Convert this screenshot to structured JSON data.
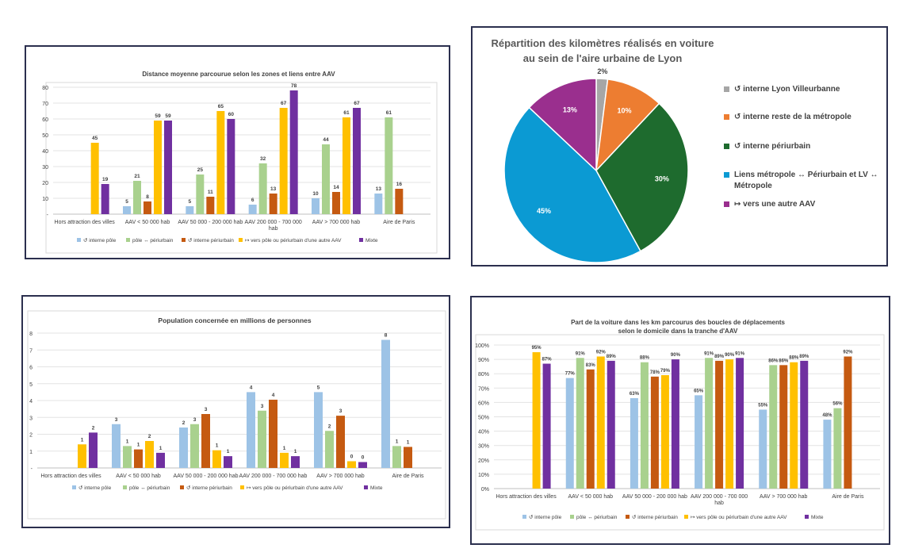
{
  "colors": {
    "interne_pole": "#9dc3e6",
    "pole_periurbain": "#a9d18e",
    "interne_periurbain": "#c55a11",
    "vers_autre_aav": "#ffc000",
    "mixte": "#7030a0",
    "pie_lyon_vill": "#a6a6a6",
    "pie_reste_metropole": "#ed7d31",
    "pie_periurbain": "#1e6b2e",
    "pie_liens": "#0b9ad3",
    "pie_autre_aav": "#9a2f8e",
    "border": "#2b2f4e"
  },
  "legend_bar": [
    {
      "key": "interne_pole",
      "label": "↺ interne pôle"
    },
    {
      "key": "pole_periurbain",
      "label": "pôle ↔ périurbain"
    },
    {
      "key": "interne_periurbain",
      "label": "↺ interne périurbain"
    },
    {
      "key": "vers_autre_aav",
      "label": "↦ vers pôle ou périurbain d'une autre AAV"
    },
    {
      "key": "mixte",
      "label": "Mixte"
    }
  ],
  "chart_data": [
    {
      "id": "distance",
      "type": "bar",
      "title": "Distance moyenne parcourue selon les zones et liens entre AAV",
      "ylim": [
        0,
        80
      ],
      "yticks": [
        "-",
        "10",
        "20",
        "30",
        "40",
        "50",
        "60",
        "70",
        "80"
      ],
      "categories": [
        [
          "Hors attraction des villes"
        ],
        [
          "AAV < 50 000 hab"
        ],
        [
          "AAV 50 000 - 200 000 hab"
        ],
        [
          "AAV 200 000 - 700 000",
          "hab"
        ],
        [
          "AAV > 700 000 hab"
        ],
        [
          "Aire de Paris"
        ]
      ],
      "series": [
        {
          "key": "interne_pole",
          "values": [
            null,
            5,
            5,
            6,
            10,
            13
          ],
          "labels": [
            "",
            "5",
            "5",
            "6",
            "10",
            "13"
          ]
        },
        {
          "key": "pole_periurbain",
          "values": [
            null,
            21,
            25,
            32,
            44,
            61
          ],
          "labels": [
            "",
            "21",
            "25",
            "32",
            "44",
            "61"
          ]
        },
        {
          "key": "interne_periurbain",
          "values": [
            null,
            8,
            11,
            13,
            14,
            16
          ],
          "labels": [
            "",
            "8",
            "11",
            "13",
            "14",
            "16"
          ]
        },
        {
          "key": "vers_autre_aav",
          "values": [
            45,
            59,
            65,
            67,
            61,
            null
          ],
          "labels": [
            "45",
            "59",
            "65",
            "67",
            "61",
            ""
          ]
        },
        {
          "key": "mixte",
          "values": [
            19,
            59,
            60,
            78,
            67,
            null
          ],
          "labels": [
            "19",
            "59",
            "60",
            "78",
            "67",
            ""
          ]
        }
      ]
    },
    {
      "id": "population",
      "type": "bar",
      "title": "Population concernée en millions de personnes",
      "ylim": [
        0,
        8
      ],
      "yticks": [
        "-",
        "1",
        "2",
        "3",
        "4",
        "5",
        "6",
        "7",
        "8"
      ],
      "categories": [
        [
          "Hors attraction des villes"
        ],
        [
          "AAV < 50 000 hab"
        ],
        [
          "AAV 50 000 - 200 000 hab"
        ],
        [
          "AAV 200 000 - 700 000 hab"
        ],
        [
          "AAV > 700 000 hab"
        ],
        [
          "Aire de Paris"
        ]
      ],
      "series": [
        {
          "key": "interne_pole",
          "values": [
            null,
            2.6,
            2.4,
            4.5,
            4.5,
            7.6
          ],
          "labels": [
            "",
            "3",
            "2",
            "4",
            "5",
            "8"
          ]
        },
        {
          "key": "pole_periurbain",
          "values": [
            null,
            1.3,
            2.6,
            3.4,
            2.2,
            1.3
          ],
          "labels": [
            "",
            "1",
            "3",
            "3",
            "2",
            "1"
          ]
        },
        {
          "key": "interne_periurbain",
          "values": [
            null,
            1.1,
            3.2,
            4.05,
            3.1,
            1.25
          ],
          "labels": [
            "",
            "1",
            "3",
            "4",
            "3",
            "1"
          ]
        },
        {
          "key": "vers_autre_aav",
          "values": [
            1.4,
            1.6,
            1.05,
            0.9,
            0.4,
            null
          ],
          "labels": [
            "1",
            "2",
            "1",
            "1",
            "0",
            ""
          ]
        },
        {
          "key": "mixte",
          "values": [
            2.1,
            0.9,
            0.7,
            0.7,
            0.35,
            null
          ],
          "labels": [
            "2",
            "1",
            "1",
            "1",
            "0",
            ""
          ]
        }
      ]
    },
    {
      "id": "part_voiture",
      "type": "bar",
      "title": [
        "Part de la voiture dans les km parcourus des boucles de déplacements",
        "selon le domicile dans la tranche d'AAV"
      ],
      "ylim": [
        0,
        100
      ],
      "yticks": [
        "0%",
        "10%",
        "20%",
        "30%",
        "40%",
        "50%",
        "60%",
        "70%",
        "80%",
        "90%",
        "100%"
      ],
      "categories": [
        [
          "Hors attraction des villes"
        ],
        [
          "AAV < 50 000 hab"
        ],
        [
          "AAV 50 000 - 200 000 hab"
        ],
        [
          "AAV 200 000 - 700 000",
          "hab"
        ],
        [
          "AAV > 700 000 hab"
        ],
        [
          "Aire de Paris"
        ]
      ],
      "series": [
        {
          "key": "interne_pole",
          "values": [
            null,
            77,
            63,
            65,
            55,
            48
          ],
          "labels": [
            "",
            "77%",
            "63%",
            "65%",
            "55%",
            "48%"
          ]
        },
        {
          "key": "pole_periurbain",
          "values": [
            null,
            91,
            88,
            91,
            86,
            56
          ],
          "labels": [
            "",
            "91%",
            "88%",
            "91%",
            "86%",
            "56%"
          ]
        },
        {
          "key": "interne_periurbain",
          "values": [
            null,
            83,
            78,
            89,
            86,
            92
          ],
          "labels": [
            "",
            "83%",
            "78%",
            "89%",
            "86%",
            "92%"
          ]
        },
        {
          "key": "vers_autre_aav",
          "values": [
            95,
            92,
            79,
            90,
            88,
            null
          ],
          "labels": [
            "95%",
            "92%",
            "79%",
            "90%",
            "88%",
            ""
          ]
        },
        {
          "key": "mixte",
          "values": [
            87,
            89,
            90,
            91,
            89,
            null
          ],
          "labels": [
            "87%",
            "89%",
            "90%",
            "91%",
            "89%",
            ""
          ]
        }
      ]
    },
    {
      "id": "repartition",
      "type": "pie",
      "title": [
        "Répartition des kilomètres réalisés en voiture",
        "au sein de l'aire urbaine de Lyon"
      ],
      "slices": [
        {
          "key": "pie_lyon_vill",
          "value": 2,
          "label": "2%",
          "legend": [
            "↺ interne Lyon Villeurbanne"
          ]
        },
        {
          "key": "pie_reste_metropole",
          "value": 10,
          "label": "10%",
          "legend": [
            "↺ interne reste de la métropole"
          ]
        },
        {
          "key": "pie_periurbain",
          "value": 30,
          "label": "30%",
          "legend": [
            "↺ interne périurbain"
          ]
        },
        {
          "key": "pie_liens",
          "value": 45,
          "label": "45%",
          "legend": [
            "Liens métropole ↔ Périurbain et LV ↔",
            "Métropole"
          ]
        },
        {
          "key": "pie_autre_aav",
          "value": 13,
          "label": "13%",
          "legend": [
            "↦ vers une autre AAV"
          ]
        }
      ]
    }
  ]
}
